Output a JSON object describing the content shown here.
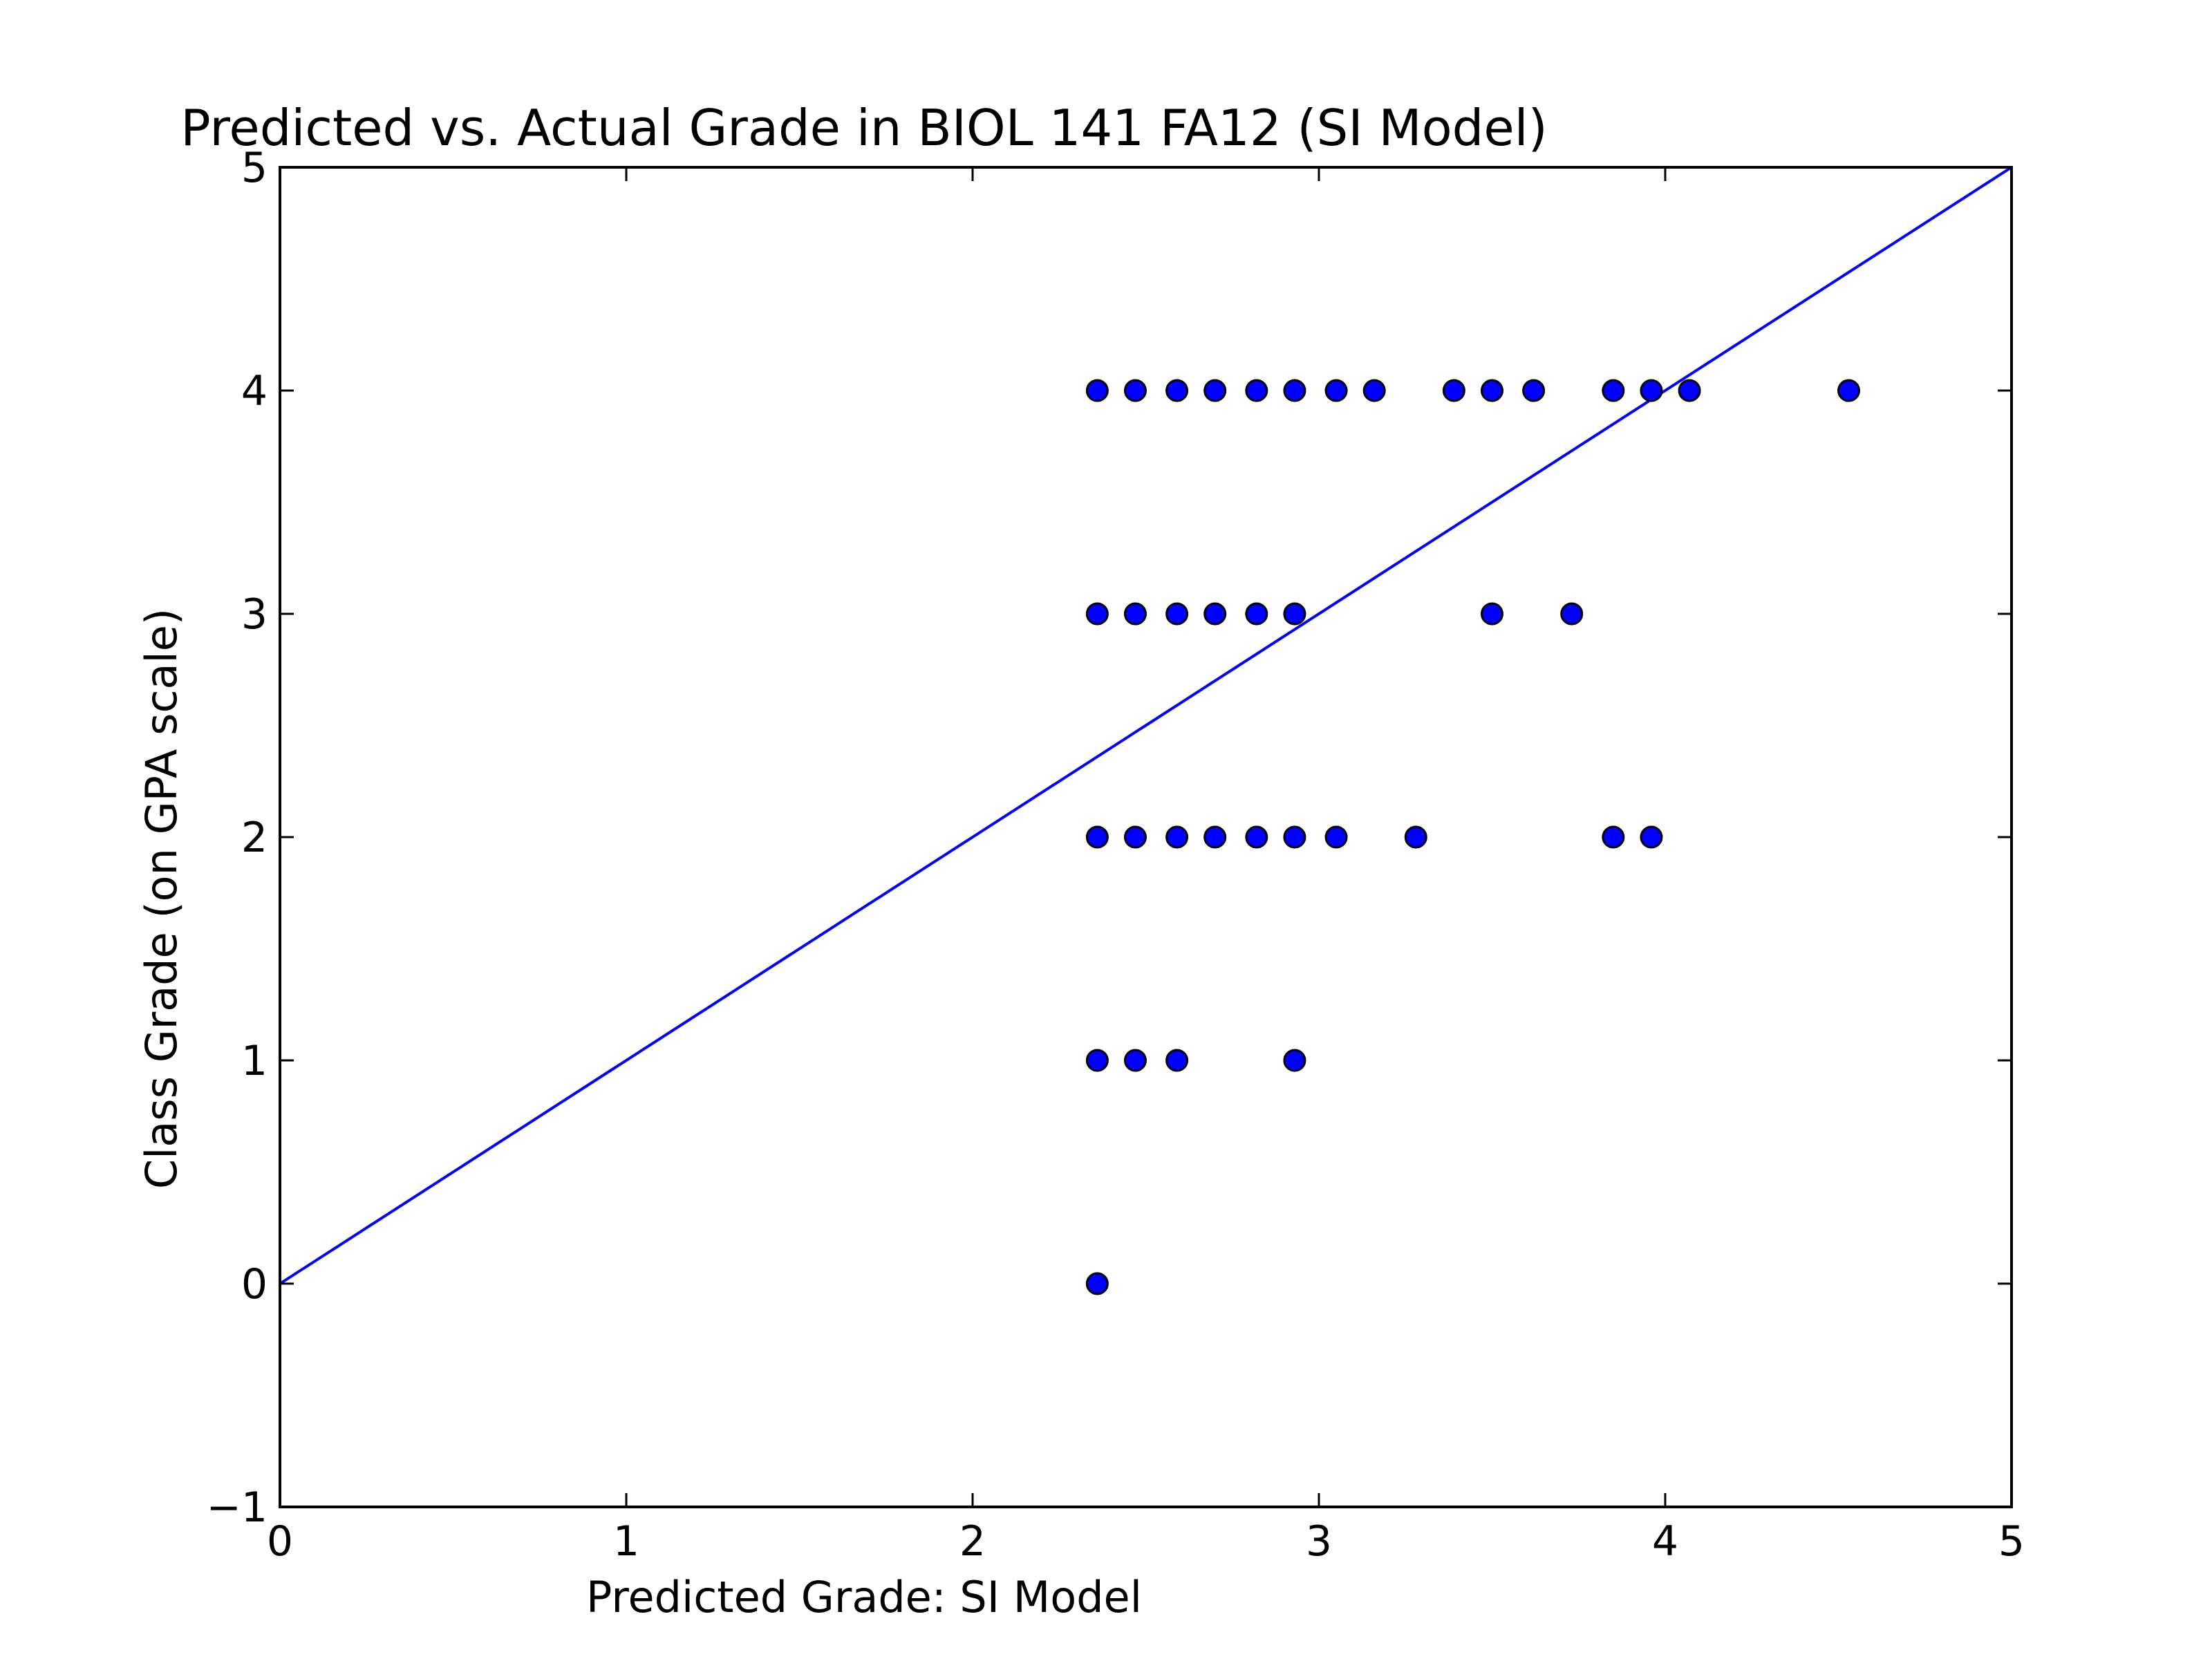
{
  "chart_data": {
    "type": "scatter",
    "title": "Predicted vs. Actual Grade in BIOL 141 FA12 (SI Model)",
    "xlabel": "Predicted Grade: SI Model",
    "ylabel": "Class Grade (on GPA scale)",
    "xlim": [
      0,
      5
    ],
    "ylim": [
      -1,
      5
    ],
    "xticks": [
      0,
      1,
      2,
      3,
      4,
      5
    ],
    "yticks": [
      -1,
      0,
      1,
      2,
      3,
      4,
      5
    ],
    "xtick_labels": [
      "0",
      "1",
      "2",
      "3",
      "4",
      "5"
    ],
    "ytick_labels": [
      "−1",
      "0",
      "1",
      "2",
      "3",
      "4",
      "5"
    ],
    "grid": false,
    "legend": "none",
    "reference_line": {
      "x": [
        0,
        5
      ],
      "y": [
        0,
        5
      ],
      "color": "#0000ff"
    },
    "marker_color": "#0000ff",
    "points": [
      {
        "x": 2.36,
        "y": 4
      },
      {
        "x": 2.47,
        "y": 4
      },
      {
        "x": 2.59,
        "y": 4
      },
      {
        "x": 2.7,
        "y": 4
      },
      {
        "x": 2.82,
        "y": 4
      },
      {
        "x": 2.93,
        "y": 4
      },
      {
        "x": 3.05,
        "y": 4
      },
      {
        "x": 3.16,
        "y": 4
      },
      {
        "x": 3.39,
        "y": 4
      },
      {
        "x": 3.5,
        "y": 4
      },
      {
        "x": 3.62,
        "y": 4
      },
      {
        "x": 3.85,
        "y": 4
      },
      {
        "x": 3.96,
        "y": 4
      },
      {
        "x": 4.07,
        "y": 4
      },
      {
        "x": 4.53,
        "y": 4
      },
      {
        "x": 2.36,
        "y": 3
      },
      {
        "x": 2.47,
        "y": 3
      },
      {
        "x": 2.59,
        "y": 3
      },
      {
        "x": 2.7,
        "y": 3
      },
      {
        "x": 2.82,
        "y": 3
      },
      {
        "x": 2.93,
        "y": 3
      },
      {
        "x": 3.5,
        "y": 3
      },
      {
        "x": 3.73,
        "y": 3
      },
      {
        "x": 2.36,
        "y": 2
      },
      {
        "x": 2.47,
        "y": 2
      },
      {
        "x": 2.59,
        "y": 2
      },
      {
        "x": 2.7,
        "y": 2
      },
      {
        "x": 2.82,
        "y": 2
      },
      {
        "x": 2.93,
        "y": 2
      },
      {
        "x": 3.05,
        "y": 2
      },
      {
        "x": 3.28,
        "y": 2
      },
      {
        "x": 3.85,
        "y": 2
      },
      {
        "x": 3.96,
        "y": 2
      },
      {
        "x": 2.36,
        "y": 1
      },
      {
        "x": 2.47,
        "y": 1
      },
      {
        "x": 2.59,
        "y": 1
      },
      {
        "x": 2.93,
        "y": 1
      },
      {
        "x": 2.36,
        "y": 0
      }
    ]
  }
}
